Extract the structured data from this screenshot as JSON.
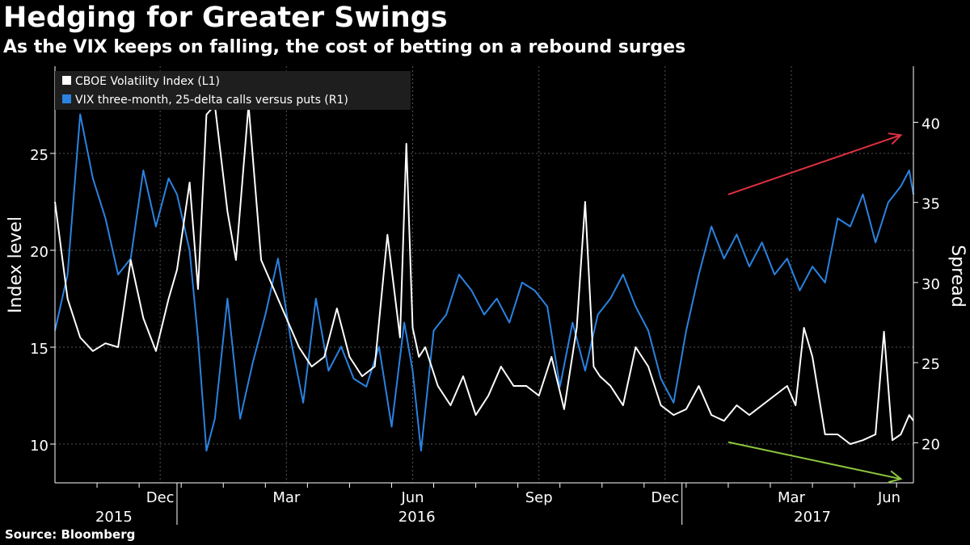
{
  "title": "Hedging for Greater Swings",
  "subtitle": "As the VIX keeps on falling, the cost of betting on a rebound surges",
  "source": "Source: Bloomberg",
  "colors": {
    "background": "#000000",
    "vix": "#ffffff",
    "skew": "#2b82e0",
    "up_arrow": "#e03040",
    "down_arrow": "#8cc63f",
    "grid": "#555555"
  },
  "chart_data": {
    "type": "line",
    "title": "Hedging for Greater Swings",
    "ylabel_left": "Index level",
    "ylabel_right": "Spread",
    "ylim_left": [
      8,
      29.5
    ],
    "ylim_right": [
      17.5,
      43.5
    ],
    "yticks_left": [
      10,
      15,
      20,
      25
    ],
    "yticks_right": [
      20,
      25,
      30,
      35,
      40
    ],
    "xlim_months": [
      0,
      20.4
    ],
    "xticks": [
      {
        "label": "Dec",
        "month": 2.5
      },
      {
        "label": "Mar",
        "month": 5.5
      },
      {
        "label": "Jun",
        "month": 8.5
      },
      {
        "label": "Sep",
        "month": 11.5
      },
      {
        "label": "Dec",
        "month": 14.5
      },
      {
        "label": "Mar",
        "month": 17.5
      },
      {
        "label": "Jun",
        "month": 20.5
      }
    ],
    "year_labels": [
      {
        "label": "2015",
        "month": 1.4
      },
      {
        "label": "2016",
        "month": 8.6
      },
      {
        "label": "2017",
        "month": 18.0
      }
    ],
    "year_dividers": [
      2.9,
      14.9
    ],
    "legend": [
      "CBOE Volatility Index (L1)",
      "VIX three-month, 25-delta calls versus puts (R1)"
    ],
    "series": [
      {
        "name": "CBOE Volatility Index (L1)",
        "axis": "left",
        "x_months": [
          0,
          0.3,
          0.6,
          0.9,
          1.2,
          1.5,
          1.8,
          2.1,
          2.4,
          2.7,
          2.9,
          3.2,
          3.4,
          3.6,
          3.8,
          4.1,
          4.3,
          4.6,
          4.9,
          5.2,
          5.5,
          5.8,
          6.1,
          6.4,
          6.7,
          7.0,
          7.3,
          7.6,
          7.9,
          8.2,
          8.35,
          8.5,
          8.65,
          8.8,
          9.1,
          9.4,
          9.7,
          10.0,
          10.3,
          10.6,
          10.9,
          11.2,
          11.5,
          11.8,
          12.1,
          12.4,
          12.6,
          12.8,
          12.95,
          13.2,
          13.5,
          13.8,
          14.1,
          14.4,
          14.7,
          15.0,
          15.3,
          15.6,
          15.9,
          16.2,
          16.5,
          16.8,
          17.1,
          17.4,
          17.6,
          17.8,
          18.0,
          18.3,
          18.6,
          18.9,
          19.2,
          19.5,
          19.7,
          19.9,
          20.1,
          20.3,
          20.4
        ],
        "values": [
          22.5,
          17.5,
          15.5,
          14.8,
          15.2,
          15.0,
          19.5,
          16.5,
          14.8,
          17.5,
          19.0,
          23.5,
          18.0,
          27.0,
          27.5,
          22.0,
          19.5,
          27.5,
          19.5,
          18.0,
          16.5,
          15.0,
          14.0,
          14.5,
          17.0,
          14.5,
          13.5,
          14.0,
          20.8,
          15.5,
          25.5,
          16.0,
          14.5,
          15.0,
          13.0,
          12.0,
          13.5,
          11.5,
          12.5,
          14.0,
          13.0,
          13.0,
          12.5,
          14.5,
          11.8,
          16.0,
          22.5,
          14.0,
          13.5,
          13.0,
          12.0,
          15.0,
          14.0,
          12.0,
          11.5,
          11.8,
          13.0,
          11.5,
          11.2,
          12.0,
          11.5,
          12.0,
          12.5,
          13.0,
          12.0,
          16.0,
          14.5,
          10.5,
          10.5,
          10.0,
          10.2,
          10.5,
          15.8,
          10.2,
          10.5,
          11.5,
          11.2
        ]
      },
      {
        "name": "VIX three-month, 25-delta calls versus puts (R1)",
        "axis": "right",
        "x_months": [
          0,
          0.3,
          0.6,
          0.9,
          1.2,
          1.5,
          1.8,
          2.1,
          2.4,
          2.7,
          2.9,
          3.2,
          3.4,
          3.6,
          3.8,
          4.1,
          4.4,
          4.7,
          5.0,
          5.3,
          5.6,
          5.9,
          6.2,
          6.5,
          6.8,
          7.1,
          7.4,
          7.7,
          8.0,
          8.3,
          8.5,
          8.7,
          9.0,
          9.3,
          9.6,
          9.9,
          10.2,
          10.5,
          10.8,
          11.1,
          11.4,
          11.7,
          12.0,
          12.3,
          12.6,
          12.9,
          13.2,
          13.5,
          13.8,
          14.1,
          14.4,
          14.7,
          15.0,
          15.3,
          15.6,
          15.9,
          16.2,
          16.5,
          16.8,
          17.1,
          17.4,
          17.7,
          18.0,
          18.3,
          18.6,
          18.9,
          19.2,
          19.5,
          19.8,
          20.1,
          20.3,
          20.4
        ],
        "values": [
          27.0,
          30.5,
          40.5,
          36.5,
          34.0,
          30.5,
          31.5,
          37.0,
          33.5,
          36.5,
          35.5,
          32.0,
          26.5,
          19.5,
          21.5,
          29.0,
          21.5,
          25.0,
          28.0,
          31.5,
          26.5,
          22.5,
          29.0,
          24.5,
          26.0,
          24.0,
          23.5,
          26.0,
          21.0,
          27.5,
          24.5,
          19.5,
          27.0,
          28.0,
          30.5,
          29.5,
          28.0,
          29.0,
          27.5,
          30.0,
          29.5,
          28.5,
          23.5,
          27.5,
          24.5,
          28.0,
          29.0,
          30.5,
          28.5,
          27.0,
          24.0,
          22.5,
          27.0,
          30.5,
          33.5,
          31.5,
          33.0,
          31.0,
          32.5,
          30.5,
          31.5,
          29.5,
          31.0,
          30.0,
          34.0,
          33.5,
          35.5,
          32.5,
          35.0,
          36.0,
          37.0,
          35.5
        ]
      }
    ],
    "annotations": [
      {
        "type": "arrow",
        "direction": "up",
        "axis": "right",
        "from": [
          16.0,
          35.5
        ],
        "to": [
          20.1,
          39.2
        ]
      },
      {
        "type": "arrow",
        "direction": "down",
        "axis": "left",
        "from": [
          16.0,
          10.1
        ],
        "to": [
          20.1,
          8.2
        ]
      }
    ]
  }
}
